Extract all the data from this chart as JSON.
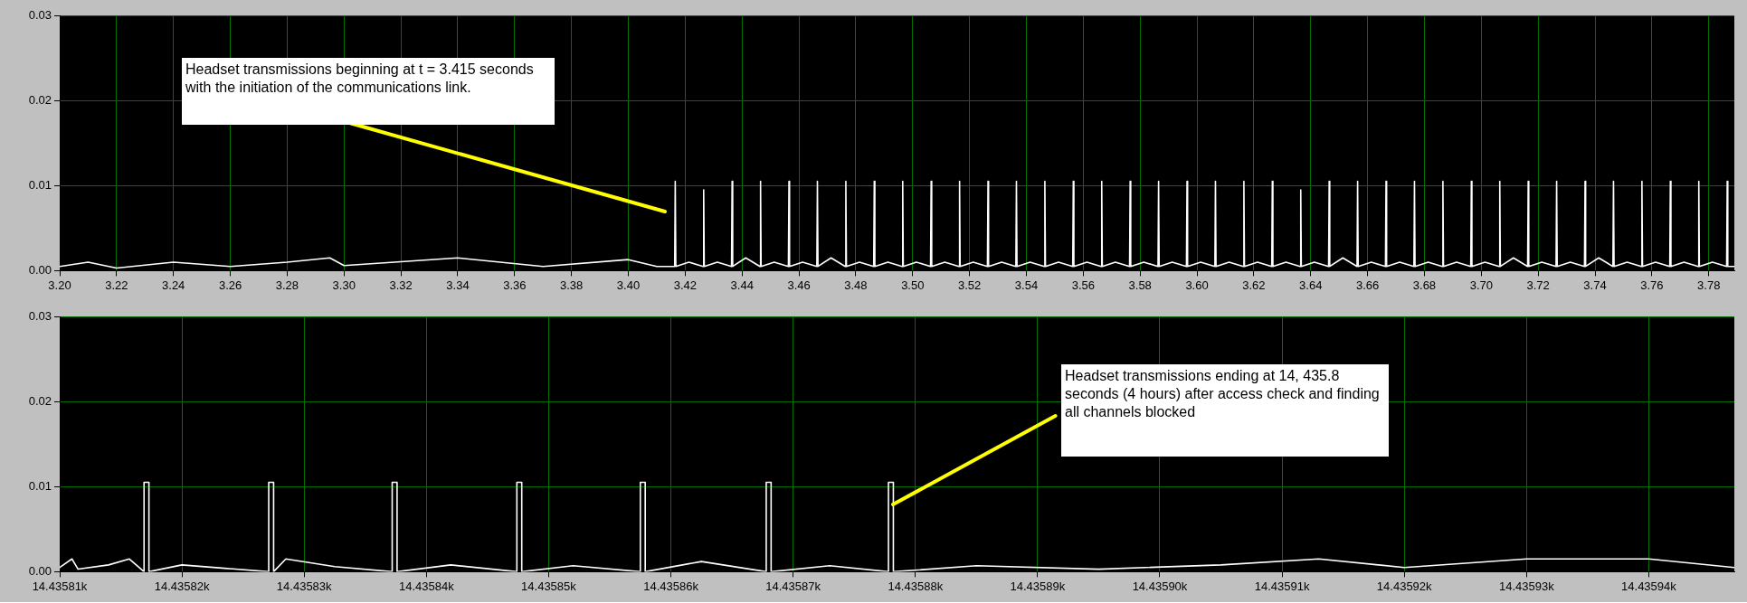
{
  "chart_data": [
    {
      "type": "line",
      "xlim": [
        3.2,
        3.789
      ],
      "ylim": [
        0,
        0.03
      ],
      "xticks": [
        {
          "value": 3.2,
          "label": "3.20"
        },
        3.22,
        3.24,
        3.26,
        3.28,
        {
          "value": 3.3,
          "label": "3.30"
        },
        3.32,
        3.34,
        3.36,
        3.38,
        {
          "value": 3.4,
          "label": "3.40"
        },
        3.42,
        3.44,
        3.46,
        3.48,
        {
          "value": 3.5,
          "label": "3.50"
        },
        3.52,
        3.54,
        3.56,
        3.58,
        {
          "value": 3.6,
          "label": "3.60"
        },
        3.62,
        3.64,
        3.66,
        3.68,
        {
          "value": 3.7,
          "label": "3.70"
        },
        3.72,
        3.74,
        3.76,
        3.78
      ],
      "yticks": [
        {
          "value": 0,
          "label": "0.00"
        },
        0.01,
        0.02,
        0.03
      ],
      "grid": true,
      "annotations": [
        "Headset transmissions beginning at t = 3.415 seconds with the initiation of the communications link."
      ],
      "series": [
        {
          "color": "#ffffff",
          "x": [
            3.2,
            3.21,
            3.22,
            3.24,
            3.26,
            3.28,
            3.295,
            3.3,
            3.34,
            3.37,
            3.4,
            3.41,
            3.4163,
            3.4165,
            3.4167,
            3.4213,
            3.4263,
            3.4265,
            3.4267,
            3.4313,
            3.4363,
            3.4365,
            3.4367,
            3.4413,
            3.4463,
            3.4465,
            3.4467,
            3.4513,
            3.4563,
            3.4565,
            3.4567,
            3.4613,
            3.4663,
            3.4665,
            3.4667,
            3.4713,
            3.4763,
            3.4765,
            3.4767,
            3.4813,
            3.4863,
            3.4865,
            3.4867,
            3.4913,
            3.4963,
            3.4965,
            3.4967,
            3.5013,
            3.5063,
            3.5065,
            3.5067,
            3.5113,
            3.5163,
            3.5165,
            3.5167,
            3.5213,
            3.5263,
            3.5265,
            3.5267,
            3.5313,
            3.5363,
            3.5365,
            3.5367,
            3.5413,
            3.5463,
            3.5465,
            3.5467,
            3.5513,
            3.5563,
            3.5565,
            3.5567,
            3.5613,
            3.5663,
            3.5665,
            3.5667,
            3.5713,
            3.5763,
            3.5765,
            3.5767,
            3.5813,
            3.5863,
            3.5865,
            3.5867,
            3.5913,
            3.5963,
            3.5965,
            3.5967,
            3.6013,
            3.6063,
            3.6065,
            3.6067,
            3.6113,
            3.6163,
            3.6165,
            3.6167,
            3.6213,
            3.6263,
            3.6265,
            3.6267,
            3.6313,
            3.6363,
            3.6365,
            3.6367,
            3.6413,
            3.6463,
            3.6465,
            3.6467,
            3.6513,
            3.6563,
            3.6565,
            3.6567,
            3.6613,
            3.6663,
            3.6665,
            3.6667,
            3.6713,
            3.6763,
            3.6765,
            3.6767,
            3.6813,
            3.6863,
            3.6865,
            3.6867,
            3.6913,
            3.6963,
            3.6965,
            3.6967,
            3.7013,
            3.7063,
            3.7065,
            3.7067,
            3.7113,
            3.7163,
            3.7165,
            3.7167,
            3.7213,
            3.7263,
            3.7265,
            3.7267,
            3.7313,
            3.7363,
            3.7365,
            3.7367,
            3.7413,
            3.7463,
            3.7465,
            3.7467,
            3.7513,
            3.7563,
            3.7565,
            3.7567,
            3.7613,
            3.7663,
            3.7665,
            3.7667,
            3.7713,
            3.7763,
            3.7765,
            3.7767,
            3.7813,
            3.7863,
            3.7865,
            3.7867,
            3.789
          ],
          "values": [
            0.0005,
            0.001,
            0.0003,
            0.001,
            0.0005,
            0.001,
            0.0015,
            0.0006,
            0.0015,
            0.0005,
            0.0013,
            0.0005,
            0.0005,
            0.0105,
            0.0005,
            0.001,
            0.0005,
            0.0095,
            0.0005,
            0.001,
            0.0005,
            0.0105,
            0.0005,
            0.0015,
            0.0005,
            0.0105,
            0.0005,
            0.001,
            0.0005,
            0.0105,
            0.0005,
            0.001,
            0.0005,
            0.0105,
            0.0005,
            0.0015,
            0.0005,
            0.0105,
            0.0005,
            0.001,
            0.0005,
            0.0105,
            0.0005,
            0.001,
            0.0005,
            0.0105,
            0.0005,
            0.001,
            0.0005,
            0.0105,
            0.0005,
            0.001,
            0.0005,
            0.0105,
            0.0005,
            0.001,
            0.0005,
            0.0105,
            0.0005,
            0.001,
            0.0005,
            0.0105,
            0.0005,
            0.001,
            0.0005,
            0.0105,
            0.0005,
            0.001,
            0.0005,
            0.0105,
            0.0005,
            0.001,
            0.0005,
            0.0105,
            0.0005,
            0.001,
            0.0005,
            0.0105,
            0.0005,
            0.001,
            0.0005,
            0.0105,
            0.0005,
            0.001,
            0.0005,
            0.0105,
            0.0005,
            0.001,
            0.0005,
            0.0105,
            0.0005,
            0.001,
            0.0005,
            0.0105,
            0.0005,
            0.001,
            0.0005,
            0.0105,
            0.0005,
            0.001,
            0.0005,
            0.0095,
            0.0005,
            0.001,
            0.0005,
            0.0105,
            0.0005,
            0.0015,
            0.0005,
            0.0105,
            0.0005,
            0.001,
            0.0005,
            0.0105,
            0.0005,
            0.001,
            0.0005,
            0.0105,
            0.0005,
            0.001,
            0.0005,
            0.0105,
            0.0005,
            0.001,
            0.0005,
            0.0105,
            0.0005,
            0.001,
            0.0005,
            0.0105,
            0.0005,
            0.0015,
            0.0005,
            0.0105,
            0.0005,
            0.001,
            0.0005,
            0.0105,
            0.0005,
            0.001,
            0.0005,
            0.0105,
            0.0005,
            0.0015,
            0.0005,
            0.0105,
            0.0005,
            0.001,
            0.0005,
            0.0105,
            0.0005,
            0.001,
            0.0005,
            0.0105,
            0.0005,
            0.001,
            0.0005,
            0.0105,
            0.0005,
            0.001,
            0.0005,
            0.0105,
            0.0005,
            0.0005
          ]
        }
      ]
    },
    {
      "type": "line",
      "xlim": [
        14435.81,
        14435.947
      ],
      "ylim": [
        0,
        0.03
      ],
      "xticks": [
        {
          "value": 14435.81,
          "label": "14.43581k"
        },
        {
          "value": 14435.82,
          "label": "14.43582k"
        },
        {
          "value": 14435.83,
          "label": "14.43583k"
        },
        {
          "value": 14435.84,
          "label": "14.43584k"
        },
        {
          "value": 14435.85,
          "label": "14.43585k"
        },
        {
          "value": 14435.86,
          "label": "14.43586k"
        },
        {
          "value": 14435.87,
          "label": "14.43587k"
        },
        {
          "value": 14435.88,
          "label": "14.43588k"
        },
        {
          "value": 14435.89,
          "label": "14.43589k"
        },
        {
          "value": 14435.9,
          "label": "14.43590k"
        },
        {
          "value": 14435.91,
          "label": "14.43591k"
        },
        {
          "value": 14435.92,
          "label": "14.43592k"
        },
        {
          "value": 14435.93,
          "label": "14.43593k"
        },
        {
          "value": 14435.94,
          "label": "14.43594k"
        }
      ],
      "yticks": [
        {
          "value": 0,
          "label": "0.00"
        },
        0.01,
        0.02,
        0.03
      ],
      "grid": true,
      "annotations": [
        {
          "text": "Headset transmissions ending at 14, 435.8 seconds (4 hours) after access check and finding all channels blocked",
          "x": 14435.8782,
          "y": 0.0079
        }
      ],
      "series": [
        {
          "color": "#ffffff",
          "x": [
            14435.81,
            14435.811,
            14435.8115,
            14435.814,
            14435.8157,
            14435.8169,
            14435.8169,
            14435.8173,
            14435.8173,
            14435.82,
            14435.8235,
            14435.8271,
            14435.8271,
            14435.8275,
            14435.8275,
            14435.8285,
            14435.8325,
            14435.8372,
            14435.8372,
            14435.8376,
            14435.8376,
            14435.842,
            14435.8474,
            14435.8474,
            14435.8478,
            14435.8478,
            14435.852,
            14435.8575,
            14435.8575,
            14435.8579,
            14435.8579,
            14435.8625,
            14435.8678,
            14435.8678,
            14435.8682,
            14435.8682,
            14435.873,
            14435.8778,
            14435.8778,
            14435.8782,
            14435.8782,
            14435.885,
            14435.895,
            14435.905,
            14435.913,
            14435.92,
            14435.93,
            14435.94,
            14435.947
          ],
          "values": [
            0.0005,
            0.0015,
            0.0003,
            0.0008,
            0.0015,
            0,
            0.0105,
            0.0105,
            0,
            0.0008,
            0.0004,
            0,
            0.0105,
            0.0105,
            0,
            0.0015,
            0.0006,
            0,
            0.0105,
            0.0105,
            0,
            0.0008,
            0,
            0.0105,
            0.0105,
            0,
            0.0007,
            0,
            0.0105,
            0.0105,
            0,
            0.0012,
            0,
            0.0105,
            0.0105,
            0,
            0.0007,
            0,
            0.0105,
            0.0105,
            0,
            0.0007,
            0.0003,
            0.0008,
            0.0015,
            0.0005,
            0.0015,
            0.0015,
            0.0005
          ]
        }
      ]
    }
  ]
}
